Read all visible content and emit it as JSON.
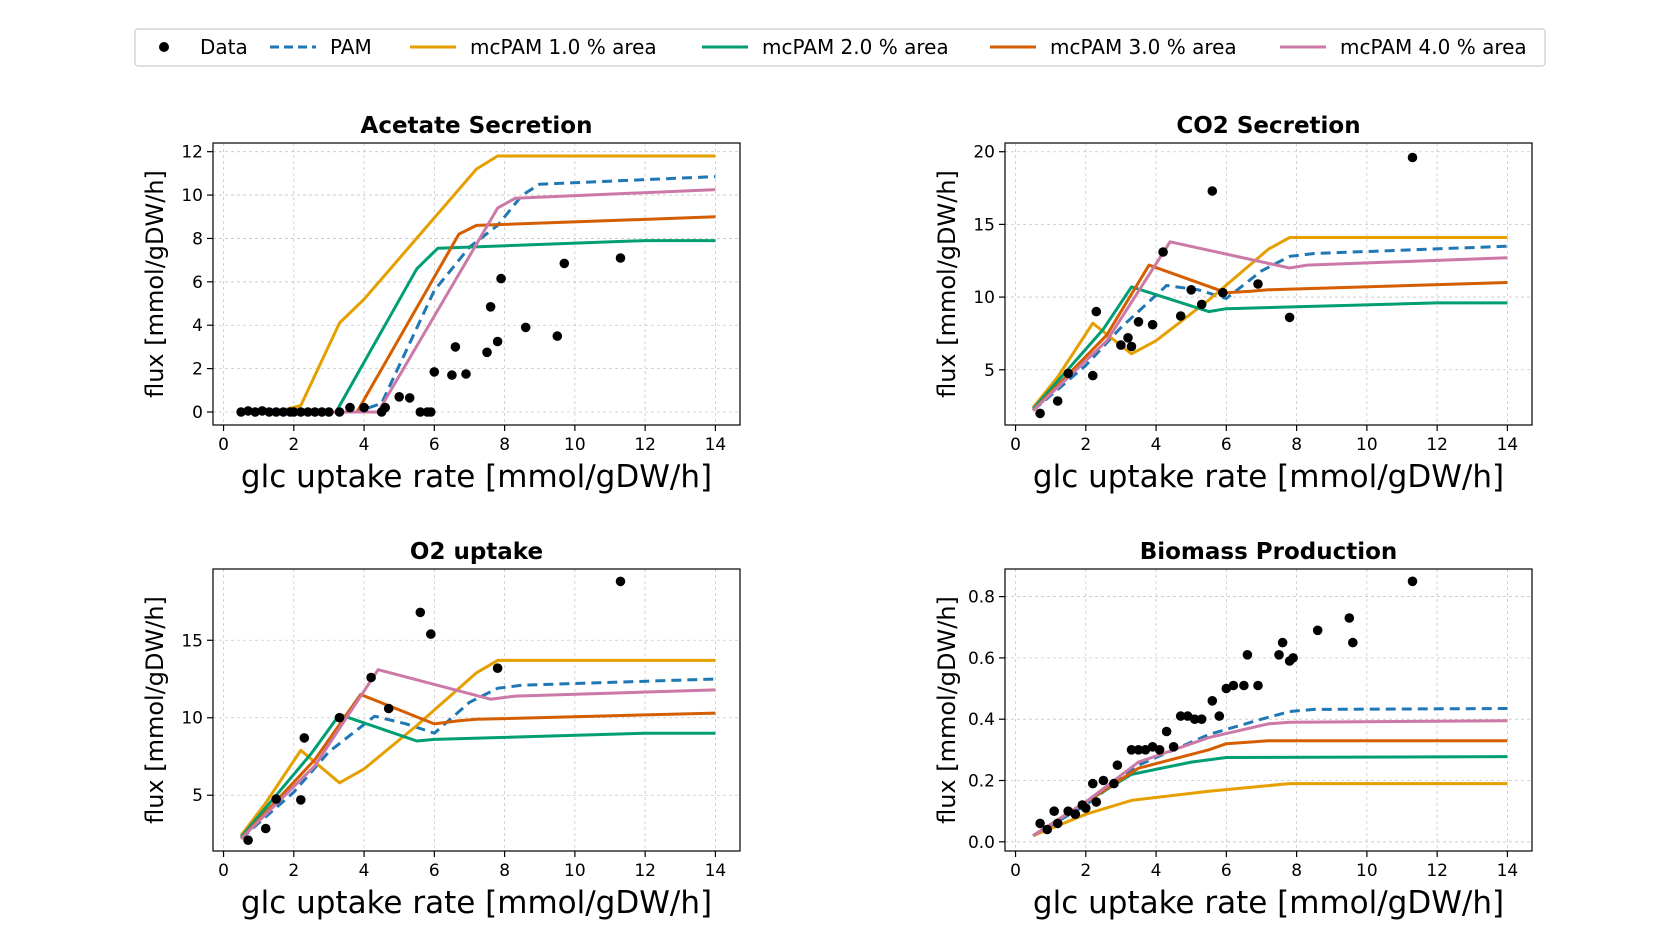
{
  "legend": {
    "items": [
      {
        "label": "Data",
        "kind": "marker",
        "color": "#000000"
      },
      {
        "label": "PAM",
        "kind": "dashed",
        "color": "#1f77b4"
      },
      {
        "label": "mcPAM 1.0 % area",
        "kind": "solid",
        "color": "#e69f00"
      },
      {
        "label": "mcPAM 2.0 % area",
        "kind": "solid",
        "color": "#009e73"
      },
      {
        "label": "mcPAM 3.0 % area",
        "kind": "solid",
        "color": "#d55e00"
      },
      {
        "label": "mcPAM 4.0 % area",
        "kind": "solid",
        "color": "#cc79a7"
      }
    ]
  },
  "chart_data": [
    {
      "type": "line",
      "title": "Acetate Secretion",
      "xlabel": "glc uptake rate [mmol/gDW/h]",
      "ylabel": "flux [mmol/gDW/h]",
      "xlim": [
        -0.3,
        14.7
      ],
      "ylim": [
        -0.6,
        12.4
      ],
      "xticks": [
        0,
        2,
        4,
        6,
        8,
        10,
        12,
        14
      ],
      "yticks": [
        0,
        2,
        4,
        6,
        8,
        10,
        12
      ],
      "grid": true,
      "scatter": {
        "name": "Data",
        "x": [
          0.5,
          0.7,
          0.9,
          1.1,
          1.3,
          1.5,
          1.7,
          1.9,
          2.0,
          2.2,
          2.4,
          2.6,
          2.8,
          3.0,
          3.3,
          3.6,
          4.0,
          4.5,
          4.6,
          5.0,
          5.3,
          5.6,
          5.8,
          5.9,
          6.0,
          6.5,
          6.6,
          6.9,
          7.5,
          7.6,
          7.8,
          7.9,
          8.6,
          9.5,
          9.7,
          11.3
        ],
        "y": [
          0,
          0.05,
          0,
          0.05,
          0,
          0,
          0,
          0,
          0,
          0,
          0,
          0,
          0,
          0,
          0,
          0.2,
          0.2,
          0,
          0.2,
          0.7,
          0.65,
          0,
          0,
          0,
          1.85,
          1.7,
          3.0,
          1.75,
          2.75,
          4.85,
          3.25,
          6.15,
          3.9,
          3.5,
          6.85,
          7.1
        ]
      },
      "series": [
        {
          "name": "PAM",
          "x": [
            0.5,
            2.0,
            3.0,
            3.8,
            4.5,
            6.0,
            7.0,
            7.8,
            8.5,
            9.0,
            14.0
          ],
          "y": [
            0,
            0,
            0,
            0,
            0.4,
            5.6,
            7.6,
            8.6,
            10.0,
            10.5,
            10.85
          ]
        },
        {
          "name": "mcPAM 1.0 % area",
          "x": [
            0.5,
            1.5,
            2.2,
            3.3,
            4.0,
            7.2,
            7.8,
            14.0
          ],
          "y": [
            0,
            0,
            0.3,
            4.1,
            5.2,
            11.2,
            11.8,
            11.8
          ]
        },
        {
          "name": "mcPAM 2.0 % area",
          "x": [
            0.5,
            3.2,
            5.5,
            6.1,
            12.0,
            14.0
          ],
          "y": [
            0,
            0,
            6.6,
            7.55,
            7.9,
            7.9
          ]
        },
        {
          "name": "mcPAM 3.0 % area",
          "x": [
            0.5,
            3.8,
            6.7,
            7.2,
            14.0
          ],
          "y": [
            0,
            0,
            8.2,
            8.6,
            9.0
          ]
        },
        {
          "name": "mcPAM 4.0 % area",
          "x": [
            0.5,
            4.4,
            7.8,
            8.3,
            14.0
          ],
          "y": [
            0,
            0,
            9.4,
            9.85,
            10.25
          ]
        }
      ]
    },
    {
      "type": "line",
      "title": "CO2 Secretion",
      "xlabel": "glc uptake rate [mmol/gDW/h]",
      "ylabel": "flux [mmol/gDW/h]",
      "xlim": [
        -0.3,
        14.7
      ],
      "ylim": [
        1.2,
        20.6
      ],
      "xticks": [
        0,
        2,
        4,
        6,
        8,
        10,
        12,
        14
      ],
      "yticks": [
        5,
        10,
        15,
        20
      ],
      "grid": true,
      "scatter": {
        "name": "Data",
        "x": [
          0.7,
          1.2,
          1.5,
          2.2,
          2.3,
          3.0,
          3.2,
          3.3,
          3.5,
          3.9,
          4.2,
          4.7,
          5.0,
          5.3,
          5.6,
          5.9,
          6.9,
          7.8,
          11.3
        ],
        "y": [
          2.0,
          2.85,
          4.75,
          4.6,
          9.0,
          6.7,
          7.2,
          6.6,
          8.3,
          8.1,
          13.1,
          8.7,
          10.5,
          9.5,
          17.3,
          10.3,
          10.9,
          8.6,
          19.6
        ]
      },
      "series": [
        {
          "name": "PAM",
          "x": [
            0.5,
            2.0,
            3.0,
            4.3,
            5.2,
            6.0,
            7.0,
            7.8,
            8.5,
            14.0
          ],
          "y": [
            2.2,
            5.3,
            7.9,
            10.8,
            10.5,
            9.9,
            11.8,
            12.8,
            13.0,
            13.5
          ]
        },
        {
          "name": "mcPAM 1.0 % area",
          "x": [
            0.5,
            1.2,
            2.2,
            3.3,
            4.0,
            5.5,
            7.2,
            7.8,
            14.0
          ],
          "y": [
            2.4,
            4.5,
            8.2,
            6.1,
            7.0,
            9.8,
            13.3,
            14.1,
            14.1
          ]
        },
        {
          "name": "mcPAM 2.0 % area",
          "x": [
            0.5,
            2.5,
            3.3,
            3.7,
            5.5,
            6.0,
            12.0,
            14.0
          ],
          "y": [
            2.3,
            7.8,
            10.7,
            10.4,
            9.0,
            9.2,
            9.6,
            9.6
          ]
        },
        {
          "name": "mcPAM 3.0 % area",
          "x": [
            0.5,
            2.6,
            3.8,
            6.0,
            6.7,
            7.2,
            14.0
          ],
          "y": [
            2.2,
            7.4,
            12.2,
            10.3,
            10.4,
            10.5,
            11.0
          ]
        },
        {
          "name": "mcPAM 4.0 % area",
          "x": [
            0.5,
            2.6,
            4.4,
            7.8,
            8.3,
            14.0
          ],
          "y": [
            2.2,
            7.0,
            13.8,
            12.0,
            12.2,
            12.7
          ]
        }
      ]
    },
    {
      "type": "line",
      "title": "O2 uptake",
      "xlabel": "glc uptake rate [mmol/gDW/h]",
      "ylabel": "flux [mmol/gDW/h]",
      "xlim": [
        -0.3,
        14.7
      ],
      "ylim": [
        1.4,
        19.6
      ],
      "xticks": [
        0,
        2,
        4,
        6,
        8,
        10,
        12,
        14
      ],
      "yticks": [
        5,
        10,
        15
      ],
      "grid": true,
      "scatter": {
        "name": "Data",
        "x": [
          0.7,
          1.2,
          1.5,
          2.2,
          2.3,
          3.3,
          4.2,
          4.7,
          5.6,
          5.9,
          7.8,
          11.3
        ],
        "y": [
          2.1,
          2.85,
          4.75,
          4.7,
          8.7,
          10.0,
          12.6,
          10.6,
          16.8,
          15.4,
          13.2,
          18.8
        ]
      },
      "series": [
        {
          "name": "PAM",
          "x": [
            0.5,
            2.0,
            3.0,
            4.3,
            5.2,
            6.0,
            7.0,
            7.8,
            8.5,
            14.0
          ],
          "y": [
            2.2,
            5.2,
            7.8,
            10.1,
            9.6,
            9.0,
            11.0,
            11.9,
            12.1,
            12.5
          ]
        },
        {
          "name": "mcPAM 1.0 % area",
          "x": [
            0.5,
            1.2,
            2.2,
            3.3,
            4.0,
            5.5,
            7.2,
            7.8,
            14.0
          ],
          "y": [
            2.4,
            4.5,
            7.9,
            5.8,
            6.7,
            9.5,
            12.9,
            13.7,
            13.7
          ]
        },
        {
          "name": "mcPAM 2.0 % area",
          "x": [
            0.5,
            2.5,
            3.3,
            3.7,
            5.5,
            6.0,
            12.0,
            14.0
          ],
          "y": [
            2.3,
            7.7,
            10.2,
            9.9,
            8.5,
            8.6,
            9.0,
            9.0
          ]
        },
        {
          "name": "mcPAM 3.0 % area",
          "x": [
            0.5,
            2.6,
            3.9,
            6.0,
            6.7,
            7.2,
            14.0
          ],
          "y": [
            2.2,
            7.3,
            11.5,
            9.6,
            9.8,
            9.9,
            10.3
          ]
        },
        {
          "name": "mcPAM 4.0 % area",
          "x": [
            0.5,
            2.6,
            4.4,
            7.6,
            8.3,
            14.0
          ],
          "y": [
            2.2,
            6.9,
            13.1,
            11.2,
            11.4,
            11.8
          ]
        }
      ]
    },
    {
      "type": "line",
      "title": "Biomass Production",
      "xlabel": "glc uptake rate [mmol/gDW/h]",
      "ylabel": "flux [mmol/gDW/h]",
      "xlim": [
        -0.3,
        14.7
      ],
      "ylim": [
        -0.03,
        0.89
      ],
      "xticks": [
        0,
        2,
        4,
        6,
        8,
        10,
        12,
        14
      ],
      "yticks": [
        0.0,
        0.2,
        0.4,
        0.6,
        0.8
      ],
      "yticklabels": [
        "0.0",
        "0.2",
        "0.4",
        "0.6",
        "0.8"
      ],
      "grid": true,
      "scatter": {
        "name": "Data",
        "x": [
          0.7,
          0.9,
          1.1,
          1.2,
          1.5,
          1.7,
          1.9,
          2.0,
          2.2,
          2.3,
          2.5,
          2.8,
          2.9,
          3.3,
          3.5,
          3.7,
          3.9,
          4.1,
          4.3,
          4.5,
          4.7,
          4.9,
          5.1,
          5.3,
          5.6,
          5.8,
          6.0,
          6.2,
          6.5,
          6.6,
          6.9,
          7.5,
          7.6,
          7.8,
          7.9,
          8.6,
          9.5,
          9.6,
          11.3
        ],
        "y": [
          0.06,
          0.04,
          0.1,
          0.06,
          0.1,
          0.09,
          0.12,
          0.11,
          0.19,
          0.13,
          0.2,
          0.19,
          0.25,
          0.3,
          0.3,
          0.3,
          0.31,
          0.3,
          0.36,
          0.31,
          0.41,
          0.41,
          0.4,
          0.4,
          0.46,
          0.41,
          0.5,
          0.51,
          0.51,
          0.61,
          0.51,
          0.61,
          0.65,
          0.59,
          0.6,
          0.69,
          0.73,
          0.65,
          0.85
        ]
      },
      "series": [
        {
          "name": "PAM",
          "x": [
            0.5,
            2.0,
            3.5,
            5.5,
            7.0,
            7.8,
            8.5,
            14.0
          ],
          "y": [
            0.02,
            0.12,
            0.25,
            0.35,
            0.4,
            0.425,
            0.432,
            0.435
          ]
        },
        {
          "name": "mcPAM 1.0 % area",
          "x": [
            0.5,
            2.0,
            3.3,
            5.5,
            7.8,
            14.0
          ],
          "y": [
            0.02,
            0.09,
            0.135,
            0.165,
            0.19,
            0.19
          ]
        },
        {
          "name": "mcPAM 2.0 % area",
          "x": [
            0.5,
            2.0,
            3.3,
            5.0,
            6.0,
            14.0
          ],
          "y": [
            0.02,
            0.13,
            0.22,
            0.26,
            0.275,
            0.278
          ]
        },
        {
          "name": "mcPAM 3.0 % area",
          "x": [
            0.5,
            2.0,
            3.5,
            5.5,
            6.0,
            7.2,
            14.0
          ],
          "y": [
            0.02,
            0.13,
            0.24,
            0.3,
            0.32,
            0.33,
            0.33
          ]
        },
        {
          "name": "mcPAM 4.0 % area",
          "x": [
            0.5,
            2.0,
            3.5,
            5.5,
            7.2,
            7.8,
            14.0
          ],
          "y": [
            0.02,
            0.13,
            0.26,
            0.34,
            0.385,
            0.39,
            0.395
          ]
        }
      ]
    }
  ]
}
